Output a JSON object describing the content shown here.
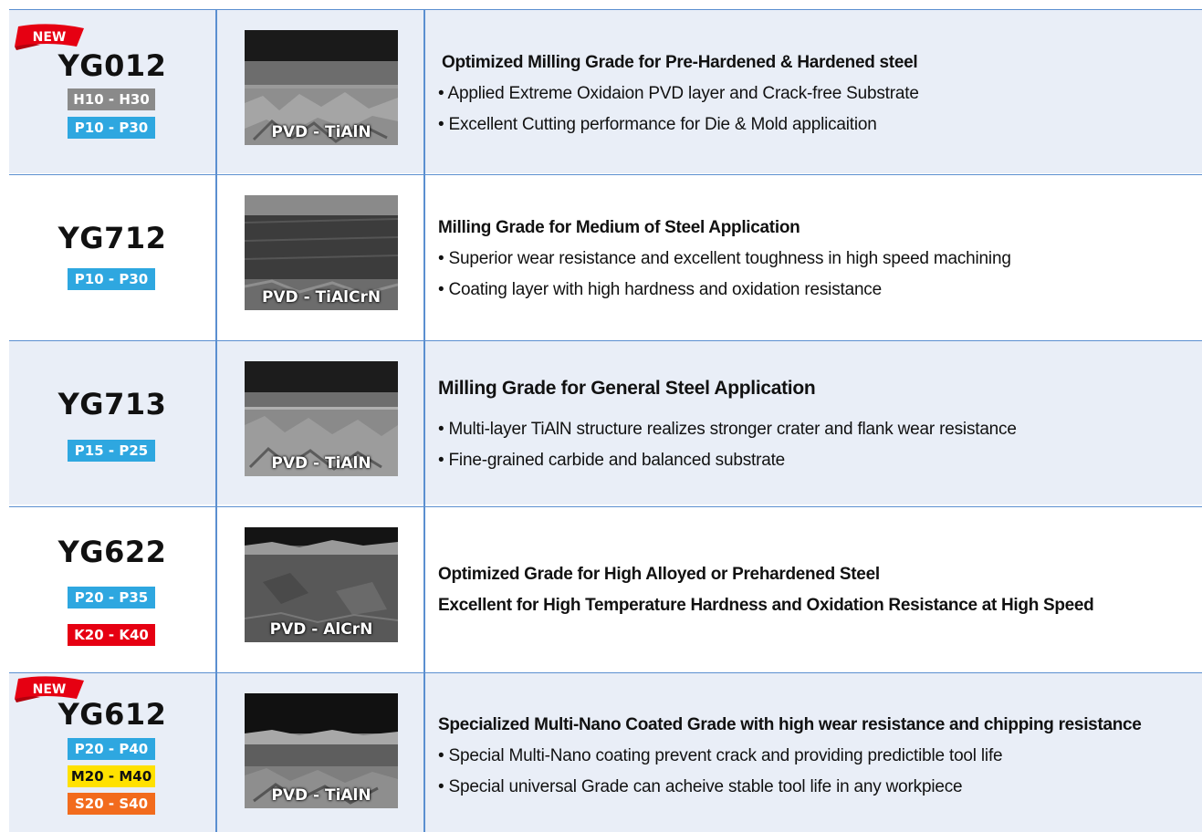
{
  "new_tag": "NEW",
  "rows": [
    {
      "grade": "YG012",
      "is_new": true,
      "ranges": [
        {
          "label": "H10 - H30",
          "color": "#8a8a8a"
        },
        {
          "label": "P10 - P30",
          "color": "#2ea7e0"
        }
      ],
      "coating": "PVD - TiAlN",
      "title": "Optimized Milling Grade for Pre-Hardened & Hardened steel",
      "lines": [
        "• Applied Extreme Oxidaion PVD layer and Crack-free Substrate",
        "• Excellent Cutting performance for Die & Mold applicaition"
      ]
    },
    {
      "grade": "YG712",
      "is_new": false,
      "ranges": [
        {
          "label": "P10 - P30",
          "color": "#2ea7e0"
        }
      ],
      "coating": "PVD - TiAlCrN",
      "title": "Milling Grade for Medium of Steel Application",
      "lines": [
        "• Superior wear resistance and excellent toughness in high speed machining",
        "• Coating layer with high hardness and oxidation resistance"
      ]
    },
    {
      "grade": "YG713",
      "is_new": false,
      "ranges": [
        {
          "label": "P15 - P25",
          "color": "#2ea7e0"
        }
      ],
      "coating": "PVD - TiAlN",
      "title": "Milling Grade for General Steel Application",
      "lines": [
        "• Multi-layer TiAlN structure realizes stronger crater and flank wear resistance",
        "• Fine-grained carbide and balanced substrate"
      ]
    },
    {
      "grade": "YG622",
      "is_new": false,
      "ranges": [
        {
          "label": "P20 - P35",
          "color": "#2ea7e0"
        },
        {
          "label": "K20 - K40",
          "color": "#e60012"
        }
      ],
      "coating": "PVD - AlCrN",
      "title": "Optimized Grade for High Alloyed or Prehardened Steel",
      "lines": [
        "Excellent for High Temperature Hardness and Oxidation Resistance at High Speed"
      ]
    },
    {
      "grade": "YG612",
      "is_new": true,
      "ranges": [
        {
          "label": "P20 - P40",
          "color": "#2ea7e0"
        },
        {
          "label": "M20 - M40",
          "color": "#ffe100"
        },
        {
          "label": "S20 - S40",
          "color": "#f26b1d"
        }
      ],
      "coating": "PVD - TiAlN",
      "title": "Specialized Multi-Nano Coated Grade with high wear resistance and chipping resistance",
      "lines": [
        "• Special Multi-Nano coating prevent crack and providing predictible tool life",
        "• Special universal Grade can acheive stable tool life in any workpiece"
      ]
    }
  ]
}
